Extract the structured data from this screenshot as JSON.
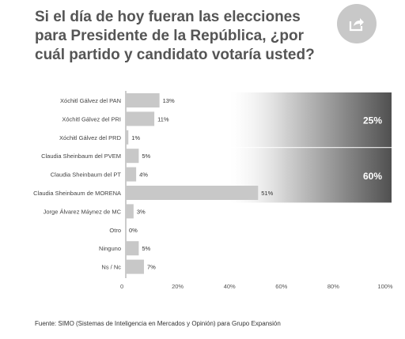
{
  "header": {
    "title": "Si el día de hoy fueran las elecciones para Presidente de la República, ¿por cuál partido y candidato votaría usted?",
    "share_icon": "share-icon"
  },
  "chart_data": {
    "type": "bar",
    "orientation": "horizontal",
    "categories": [
      "Xóchitl Gálvez del PAN",
      "Xóchitl Gálvez del PRI",
      "Xóchitl Gálvez del PRD",
      "Claudia Sheinbaum del PVEM",
      "Claudia Sheinbaum del PT",
      "Claudia Sheinbaum de MORENA",
      "Jorge Álvarez Máynez de MC",
      "Otro",
      "Ninguno",
      "Ns / Nc"
    ],
    "values": [
      13,
      11,
      1,
      5,
      4,
      51,
      3,
      0,
      5,
      7
    ],
    "value_labels": [
      "13%",
      "11%",
      "1%",
      "5%",
      "4%",
      "51%",
      "3%",
      "0%",
      "5%",
      "7%"
    ],
    "xlim": [
      0,
      100
    ],
    "xticks": [
      "0",
      "20%",
      "40%",
      "60%",
      "80%",
      "100%"
    ],
    "xtick_values": [
      0,
      20,
      40,
      60,
      80,
      100
    ],
    "groups": [
      {
        "label": "25%",
        "value": 25,
        "rows": [
          0,
          2
        ]
      },
      {
        "label": "60%",
        "value": 60,
        "rows": [
          3,
          5
        ]
      }
    ],
    "colors": {
      "bar": "#c8c8c8",
      "group_dark": "#505050",
      "group_light": "#f2f2f2",
      "axis": "#999999"
    }
  },
  "source": "Fuente: SIMO (Sistemas de Inteligencia en Mercados y Opinión) para Grupo Expansión"
}
